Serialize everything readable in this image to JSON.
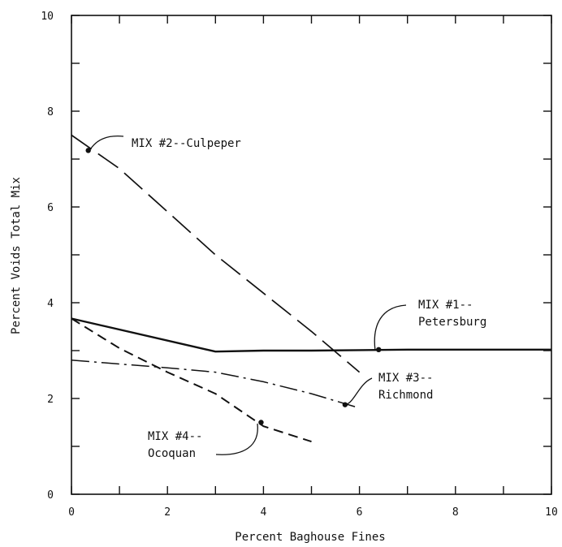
{
  "chart_data": {
    "type": "line",
    "xlabel": "Percent Baghouse Fines",
    "ylabel": "Percent Voids Total Mix",
    "xlim": [
      0,
      10
    ],
    "ylim": [
      0,
      10
    ],
    "xticks": [
      0,
      2,
      4,
      6,
      8,
      10
    ],
    "yticks": [
      0,
      2,
      4,
      6,
      8,
      10
    ],
    "xtick_labels": [
      "0",
      "2",
      "4",
      "6",
      "8",
      "10"
    ],
    "ytick_labels": [
      "0",
      "2",
      "4",
      "6",
      "8",
      "10"
    ],
    "grid": false,
    "legend": "none",
    "series": [
      {
        "name": "MIX #1--Petersburg",
        "style": "solid",
        "marker": {
          "x": 6.4,
          "y": 3.02
        },
        "x": [
          0,
          3,
          4,
          5,
          6,
          7,
          8,
          9,
          10
        ],
        "y": [
          3.67,
          2.98,
          3.0,
          3.0,
          3.01,
          3.02,
          3.02,
          3.02,
          3.02
        ]
      },
      {
        "name": "MIX #2--Culpeper",
        "style": "long-dash",
        "marker": {
          "x": 0.35,
          "y": 7.18
        },
        "x": [
          0,
          1,
          2,
          3,
          4,
          5,
          6
        ],
        "y": [
          7.5,
          6.8,
          5.9,
          5.0,
          4.2,
          3.4,
          2.55
        ]
      },
      {
        "name": "MIX #3--Richmond",
        "style": "dash-dot",
        "marker": {
          "x": 5.7,
          "y": 1.87
        },
        "x": [
          0,
          1,
          2,
          3,
          4,
          5,
          6
        ],
        "y": [
          2.8,
          2.72,
          2.64,
          2.55,
          2.35,
          2.1,
          1.8
        ]
      },
      {
        "name": "MIX #4--Ocoquan",
        "style": "short-dash",
        "marker": {
          "x": 3.95,
          "y": 1.5
        },
        "x": [
          0,
          1,
          2,
          3,
          4,
          5
        ],
        "y": [
          3.67,
          3.05,
          2.55,
          2.1,
          1.42,
          1.1
        ]
      }
    ],
    "annotations": [
      {
        "lines": [
          "MIX #2--Culpeper"
        ]
      },
      {
        "lines": [
          "MIX #1--",
          "Petersburg"
        ]
      },
      {
        "lines": [
          "MIX #3--",
          "Richmond"
        ]
      },
      {
        "lines": [
          "MIX #4--",
          "Ocoquan"
        ]
      }
    ]
  }
}
